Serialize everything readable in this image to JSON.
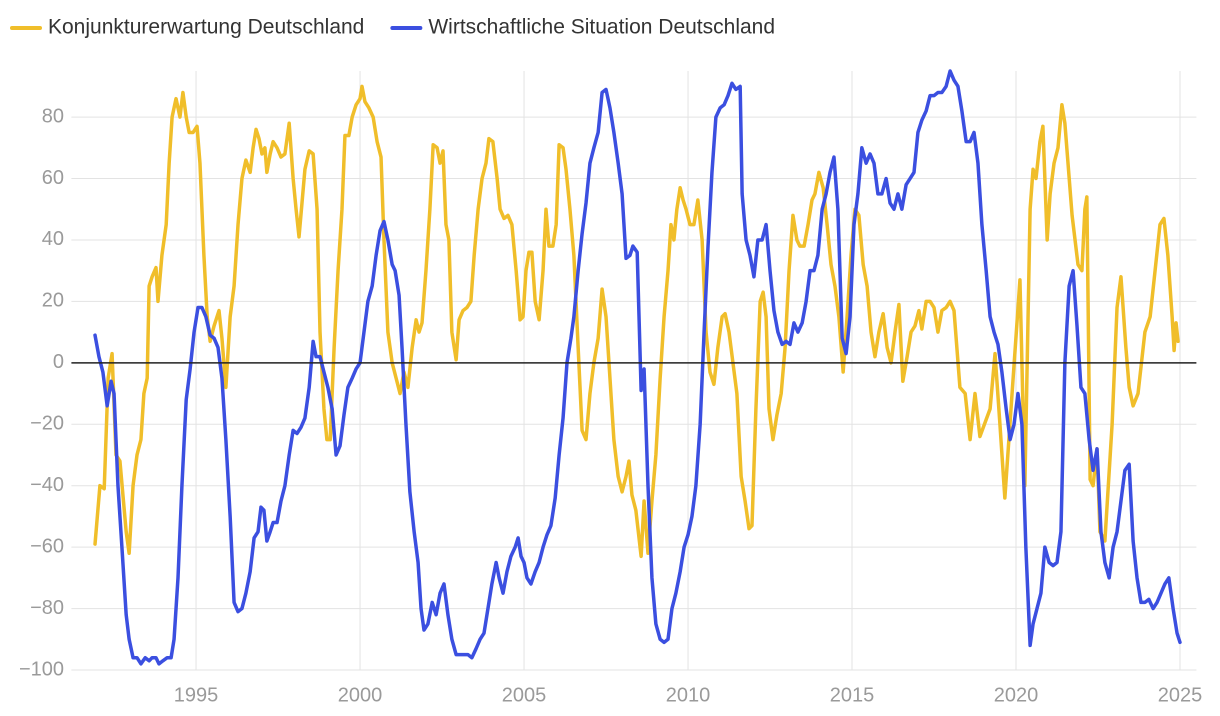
{
  "chart_data": {
    "type": "line",
    "xlim": [
      1991.2,
      2025.5
    ],
    "xticks": [
      1995,
      2000,
      2005,
      2010,
      2015,
      2020,
      2025
    ],
    "ylim": [
      -100,
      95
    ],
    "yticks": [
      {
        "value": -100,
        "label": "−100"
      },
      {
        "value": -80,
        "label": "−80"
      },
      {
        "value": -60,
        "label": "−60"
      },
      {
        "value": -40,
        "label": "−40"
      },
      {
        "value": -20,
        "label": "−20"
      },
      0,
      20,
      40,
      60,
      80
    ],
    "grid": true,
    "series": [
      {
        "name": "Konjunkturerwartung Deutschland",
        "color": "#f0be2a",
        "x": [
          1991.92,
          1992.07,
          1992.2,
          1992.32,
          1992.44,
          1992.56,
          1992.68,
          1992.87,
          1992.96,
          1993.08,
          1993.2,
          1993.32,
          1993.41,
          1993.51,
          1993.57,
          1993.66,
          1993.78,
          1993.84,
          1993.96,
          1994.09,
          1994.18,
          1994.27,
          1994.39,
          1994.51,
          1994.6,
          1994.7,
          1994.79,
          1994.91,
          1995.03,
          1995.12,
          1995.24,
          1995.34,
          1995.43,
          1995.55,
          1995.7,
          1995.79,
          1995.91,
          1996.04,
          1996.16,
          1996.28,
          1996.4,
          1996.52,
          1996.65,
          1996.74,
          1996.83,
          1996.92,
          1997.01,
          1997.1,
          1997.16,
          1997.26,
          1997.35,
          1997.47,
          1997.59,
          1997.71,
          1997.84,
          1997.96,
          1998.05,
          1998.14,
          1998.23,
          1998.32,
          1998.45,
          1998.57,
          1998.69,
          1998.78,
          1998.9,
          1998.99,
          1999.09,
          1999.21,
          1999.33,
          1999.45,
          1999.54,
          1999.66,
          1999.76,
          1999.88,
          2000.0,
          2000.06,
          2000.15,
          2000.27,
          2000.4,
          2000.52,
          2000.64,
          2000.73,
          2000.85,
          2000.98,
          2001.1,
          2001.22,
          2001.34,
          2001.46,
          2001.59,
          2001.71,
          2001.8,
          2001.89,
          2002.01,
          2002.13,
          2002.23,
          2002.35,
          2002.44,
          2002.53,
          2002.62,
          2002.71,
          2002.8,
          2002.93,
          2003.02,
          2003.14,
          2003.26,
          2003.38,
          2003.48,
          2003.6,
          2003.72,
          2003.84,
          2003.93,
          2004.05,
          2004.18,
          2004.27,
          2004.39,
          2004.51,
          2004.63,
          2004.76,
          2004.88,
          2004.97,
          2005.06,
          2005.15,
          2005.24,
          2005.34,
          2005.46,
          2005.58,
          2005.67,
          2005.76,
          2005.88,
          2005.98,
          2006.07,
          2006.19,
          2006.28,
          2006.4,
          2006.52,
          2006.65,
          2006.77,
          2006.89,
          2007.01,
          2007.13,
          2007.26,
          2007.38,
          2007.5,
          2007.62,
          2007.74,
          2007.87,
          2007.99,
          2008.11,
          2008.2,
          2008.29,
          2008.41,
          2008.57,
          2008.66,
          2008.78,
          2008.9,
          2009.02,
          2009.15,
          2009.27,
          2009.39,
          2009.48,
          2009.57,
          2009.66,
          2009.76,
          2009.85,
          2009.94,
          2010.06,
          2010.18,
          2010.3,
          2010.43,
          2010.55,
          2010.67,
          2010.79,
          2010.91,
          2011.04,
          2011.13,
          2011.25,
          2011.37,
          2011.49,
          2011.62,
          2011.74,
          2011.86,
          2011.95,
          2012.07,
          2012.2,
          2012.29,
          2012.38,
          2012.47,
          2012.59,
          2012.71,
          2012.84,
          2012.96,
          2013.08,
          2013.2,
          2013.32,
          2013.41,
          2013.54,
          2013.66,
          2013.78,
          2013.87,
          2013.99,
          2014.12,
          2014.24,
          2014.36,
          2014.48,
          2014.6,
          2014.73,
          2014.85,
          2014.97,
          2015.09,
          2015.21,
          2015.34,
          2015.46,
          2015.58,
          2015.7,
          2015.82,
          2015.95,
          2016.07,
          2016.19,
          2016.31,
          2016.43,
          2016.55,
          2016.68,
          2016.8,
          2016.92,
          2017.04,
          2017.13,
          2017.26,
          2017.38,
          2017.5,
          2017.62,
          2017.74,
          2017.87,
          2017.99,
          2018.11,
          2018.29,
          2018.45,
          2018.6,
          2018.75,
          2018.9,
          2019.21,
          2019.36,
          2019.51,
          2019.66,
          2019.88,
          2020.12,
          2020.27,
          2020.43,
          2020.52,
          2020.61,
          2020.73,
          2020.82,
          2020.95,
          2021.04,
          2021.16,
          2021.28,
          2021.4,
          2021.49,
          2021.71,
          2021.89,
          2022.01,
          2022.1,
          2022.16,
          2022.26,
          2022.35,
          2022.47,
          2022.56,
          2022.71,
          2022.93,
          2023.08,
          2023.2,
          2023.35,
          2023.45,
          2023.57,
          2023.72,
          2023.93,
          2024.09,
          2024.24,
          2024.39,
          2024.51,
          2024.63,
          2024.76,
          2024.82,
          2024.88,
          2024.94
        ],
        "values": [
          -59,
          -40,
          -41,
          -5,
          3,
          -30,
          -32,
          -55,
          -62,
          -40,
          -30,
          -25,
          -10,
          -5,
          25,
          28,
          31,
          20,
          35,
          45,
          65,
          80,
          86,
          80,
          88,
          80,
          75,
          75,
          77,
          65,
          35,
          15,
          7,
          12,
          17,
          8,
          -8,
          15,
          25,
          45,
          60,
          66,
          62,
          70,
          76,
          73,
          68,
          70,
          62,
          68,
          72,
          70,
          67,
          68,
          78,
          60,
          50,
          41,
          52,
          63,
          69,
          68,
          50,
          10,
          -15,
          -25,
          -25,
          5,
          30,
          50,
          74,
          74,
          80,
          84,
          86,
          90,
          85,
          83,
          80,
          72,
          67,
          40,
          10,
          0,
          -5,
          -10,
          -3,
          -8,
          5,
          14,
          10,
          13,
          30,
          50,
          71,
          70,
          65,
          69,
          45,
          40,
          10,
          1,
          14,
          17,
          18,
          20,
          35,
          50,
          60,
          65,
          73,
          72,
          60,
          50,
          47,
          48,
          45,
          30,
          14,
          15,
          30,
          36,
          36,
          20,
          14,
          30,
          50,
          38,
          38,
          45,
          71,
          70,
          63,
          50,
          35,
          5,
          -22,
          -25,
          -10,
          0,
          8,
          24,
          15,
          -5,
          -25,
          -37,
          -42,
          -37,
          -32,
          -43,
          -48,
          -63,
          -45,
          -62,
          -45,
          -30,
          -5,
          15,
          30,
          45,
          40,
          50,
          57,
          53,
          50,
          45,
          45,
          53,
          40,
          10,
          -3,
          -7,
          5,
          15,
          16,
          10,
          0,
          -10,
          -37,
          -45,
          -54,
          -53,
          -15,
          20,
          23,
          15,
          -15,
          -25,
          -17,
          -10,
          5,
          30,
          48,
          40,
          38,
          38,
          45,
          53,
          55,
          62,
          57,
          45,
          32,
          25,
          15,
          -3,
          15,
          35,
          50,
          48,
          32,
          25,
          10,
          2,
          10,
          16,
          5,
          0,
          10,
          19,
          -6,
          2,
          10,
          12,
          17,
          11,
          20,
          20,
          18,
          10,
          17,
          18,
          20,
          17,
          -8,
          -10,
          -25,
          -10,
          -24,
          -15,
          3,
          -20,
          -44,
          -10,
          27,
          -40,
          50,
          63,
          60,
          72,
          77,
          40,
          55,
          65,
          70,
          84,
          78,
          48,
          32,
          30,
          50,
          54,
          -38,
          -40,
          -28,
          -55,
          -58,
          -20,
          18,
          28,
          5,
          -8,
          -14,
          -10,
          10,
          15,
          30,
          45,
          47,
          35,
          15,
          4,
          13,
          7
        ]
      },
      {
        "name": "Wirtschaftliche Situation Deutschland",
        "color": "#3b4fe0",
        "x": [
          1991.92,
          1992.04,
          1992.16,
          1992.29,
          1992.41,
          1992.5,
          1992.62,
          1992.74,
          1992.87,
          1992.96,
          1993.08,
          1993.2,
          1993.32,
          1993.45,
          1993.57,
          1993.66,
          1993.78,
          1993.87,
          1993.99,
          1994.12,
          1994.24,
          1994.33,
          1994.45,
          1994.57,
          1994.7,
          1994.82,
          1994.94,
          1995.06,
          1995.18,
          1995.3,
          1995.43,
          1995.55,
          1995.67,
          1995.79,
          1995.91,
          1996.04,
          1996.16,
          1996.28,
          1996.4,
          1996.52,
          1996.65,
          1996.77,
          1996.89,
          1996.98,
          1997.07,
          1997.16,
          1997.26,
          1997.35,
          1997.47,
          1997.59,
          1997.71,
          1997.84,
          1997.96,
          1998.08,
          1998.2,
          1998.32,
          1998.45,
          1998.57,
          1998.66,
          1998.78,
          1998.9,
          1999.02,
          1999.15,
          1999.27,
          1999.39,
          1999.51,
          1999.63,
          1999.76,
          1999.88,
          2000.0,
          2000.12,
          2000.24,
          2000.37,
          2000.49,
          2000.61,
          2000.73,
          2000.85,
          2000.98,
          2001.07,
          2001.19,
          2001.28,
          2001.4,
          2001.52,
          2001.65,
          2001.77,
          2001.86,
          2001.95,
          2002.07,
          2002.2,
          2002.32,
          2002.44,
          2002.56,
          2002.68,
          2002.8,
          2002.93,
          2003.05,
          2003.17,
          2003.29,
          2003.41,
          2003.54,
          2003.66,
          2003.78,
          2003.9,
          2004.02,
          2004.15,
          2004.24,
          2004.36,
          2004.48,
          2004.6,
          2004.73,
          2004.82,
          2004.91,
          2005.0,
          2005.09,
          2005.21,
          2005.34,
          2005.46,
          2005.58,
          2005.7,
          2005.82,
          2005.95,
          2006.07,
          2006.19,
          2006.31,
          2006.43,
          2006.52,
          2006.65,
          2006.77,
          2006.89,
          2007.01,
          2007.13,
          2007.26,
          2007.38,
          2007.5,
          2007.62,
          2007.74,
          2007.87,
          2007.99,
          2008.11,
          2008.23,
          2008.32,
          2008.45,
          2008.57,
          2008.66,
          2008.78,
          2008.9,
          2009.02,
          2009.15,
          2009.27,
          2009.39,
          2009.51,
          2009.63,
          2009.76,
          2009.88,
          2010.0,
          2010.12,
          2010.24,
          2010.37,
          2010.49,
          2010.61,
          2010.73,
          2010.85,
          2010.98,
          2011.1,
          2011.22,
          2011.34,
          2011.46,
          2011.59,
          2011.65,
          2011.77,
          2011.89,
          2012.01,
          2012.13,
          2012.26,
          2012.38,
          2012.5,
          2012.62,
          2012.74,
          2012.87,
          2012.99,
          2013.11,
          2013.23,
          2013.35,
          2013.48,
          2013.6,
          2013.72,
          2013.84,
          2013.96,
          2014.09,
          2014.21,
          2014.33,
          2014.45,
          2014.57,
          2014.7,
          2014.82,
          2014.94,
          2015.06,
          2015.18,
          2015.3,
          2015.43,
          2015.55,
          2015.67,
          2015.79,
          2015.91,
          2016.04,
          2016.16,
          2016.28,
          2016.4,
          2016.52,
          2016.65,
          2016.77,
          2016.89,
          2017.01,
          2017.13,
          2017.26,
          2017.38,
          2017.5,
          2017.62,
          2017.74,
          2017.87,
          2017.99,
          2018.11,
          2018.23,
          2018.35,
          2018.48,
          2018.6,
          2018.72,
          2018.84,
          2018.96,
          2019.09,
          2019.21,
          2019.33,
          2019.45,
          2019.57,
          2019.7,
          2019.82,
          2019.94,
          2020.06,
          2020.18,
          2020.3,
          2020.43,
          2020.52,
          2020.64,
          2020.76,
          2020.88,
          2021.01,
          2021.13,
          2021.25,
          2021.37,
          2021.49,
          2021.62,
          2021.74,
          2021.86,
          2021.98,
          2022.1,
          2022.23,
          2022.35,
          2022.47,
          2022.59,
          2022.71,
          2022.84,
          2022.96,
          2023.08,
          2023.2,
          2023.32,
          2023.45,
          2023.57,
          2023.69,
          2023.81,
          2023.93,
          2024.05,
          2024.18,
          2024.3,
          2024.42,
          2024.54,
          2024.66,
          2024.79,
          2024.91,
          2025.0
        ],
        "values": [
          9,
          2,
          -3,
          -14,
          -6,
          -10,
          -40,
          -60,
          -82,
          -90,
          -96,
          -96,
          -98,
          -96,
          -97,
          -96,
          -96,
          -98,
          -97,
          -96,
          -96,
          -90,
          -70,
          -40,
          -12,
          -2,
          10,
          18,
          18,
          15,
          9,
          8,
          5,
          -5,
          -25,
          -50,
          -78,
          -81,
          -80,
          -75,
          -68,
          -57,
          -55,
          -47,
          -48,
          -58,
          -55,
          -52,
          -52,
          -45,
          -40,
          -30,
          -22,
          -23,
          -21,
          -18,
          -8,
          7,
          2,
          2,
          -3,
          -8,
          -15,
          -30,
          -27,
          -17,
          -8,
          -5,
          -2,
          0,
          10,
          20,
          25,
          35,
          43,
          46,
          40,
          32,
          30,
          22,
          5,
          -20,
          -42,
          -55,
          -65,
          -80,
          -87,
          -85,
          -78,
          -82,
          -75,
          -72,
          -82,
          -90,
          -95,
          -95,
          -95,
          -95,
          -96,
          -93,
          -90,
          -88,
          -80,
          -72,
          -65,
          -70,
          -75,
          -68,
          -63,
          -60,
          -57,
          -63,
          -65,
          -70,
          -72,
          -68,
          -65,
          -60,
          -56,
          -53,
          -44,
          -30,
          -18,
          0,
          8,
          15,
          30,
          42,
          52,
          65,
          70,
          75,
          88,
          89,
          83,
          75,
          65,
          55,
          34,
          35,
          38,
          36,
          -9,
          -2,
          -40,
          -70,
          -85,
          -90,
          -91,
          -90,
          -80,
          -75,
          -68,
          -60,
          -56,
          -50,
          -40,
          -20,
          10,
          38,
          62,
          80,
          83,
          84,
          87,
          91,
          89,
          90,
          55,
          40,
          35,
          28,
          40,
          40,
          45,
          30,
          17,
          10,
          6,
          7,
          6,
          13,
          10,
          13,
          20,
          30,
          30,
          35,
          50,
          55,
          62,
          67,
          50,
          8,
          3,
          15,
          45,
          55,
          70,
          65,
          68,
          65,
          55,
          55,
          60,
          52,
          50,
          55,
          50,
          58,
          60,
          62,
          75,
          79,
          82,
          87,
          87,
          88,
          88,
          90,
          95,
          92,
          90,
          82,
          72,
          72,
          75,
          65,
          45,
          30,
          15,
          10,
          6,
          -3,
          -15,
          -25,
          -20,
          -10,
          -20,
          -60,
          -92,
          -85,
          -80,
          -75,
          -60,
          -65,
          -66,
          -65,
          -55,
          0,
          25,
          30,
          12,
          -8,
          -10,
          -25,
          -35,
          -28,
          -55,
          -65,
          -70,
          -60,
          -55,
          -45,
          -35,
          -33,
          -58,
          -70,
          -78,
          -78,
          -77,
          -80,
          -78,
          -75,
          -72,
          -70,
          -80,
          -88,
          -91
        ]
      }
    ]
  }
}
